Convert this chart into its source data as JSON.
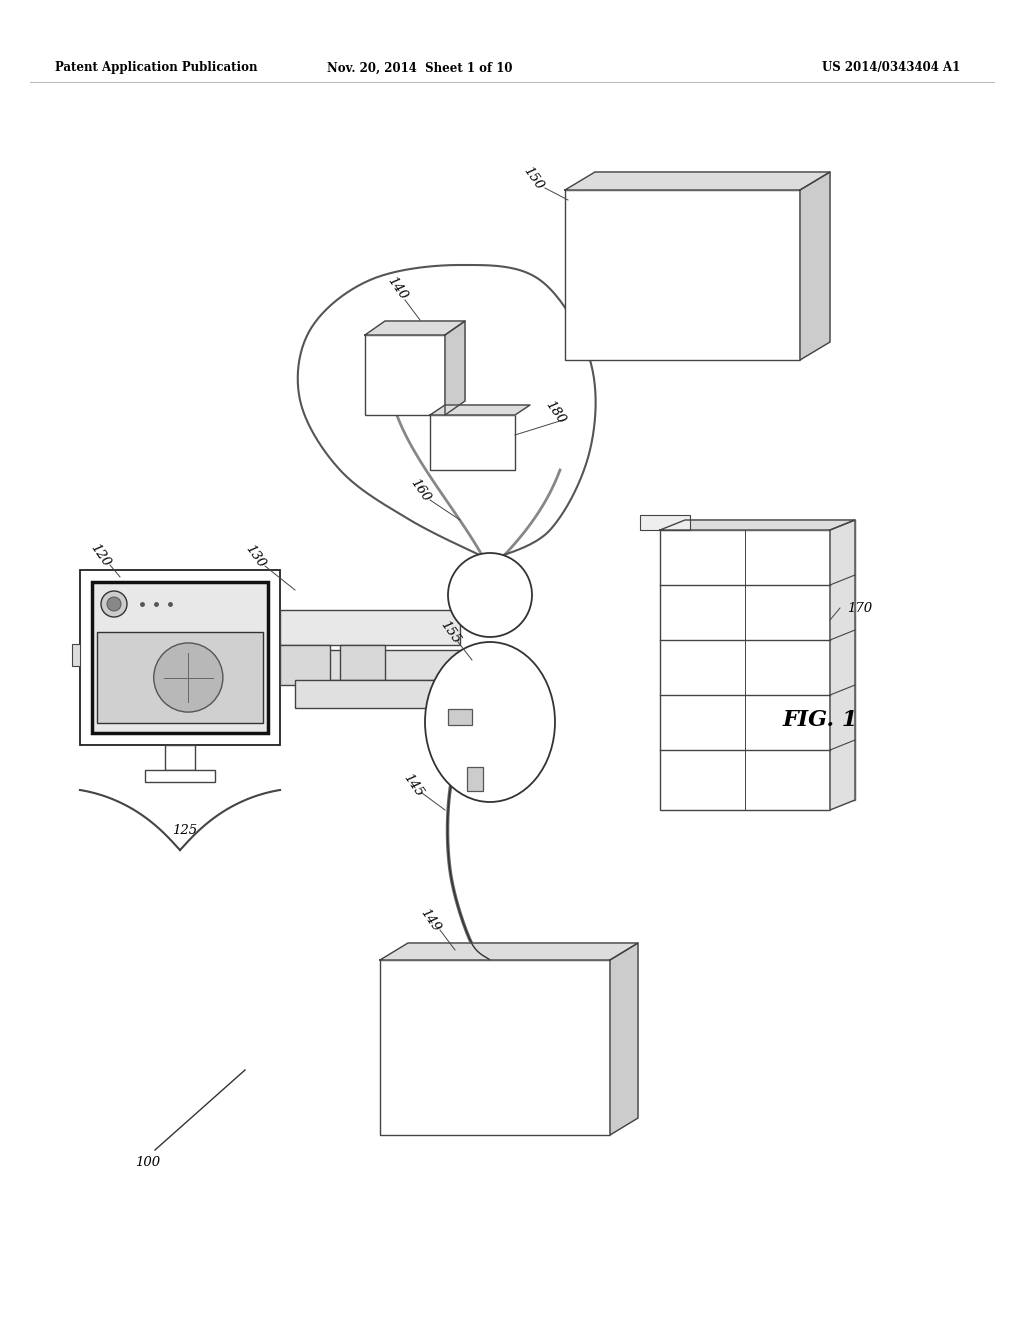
{
  "bg_color": "#ffffff",
  "lc": "#444444",
  "header_left": "Patent Application Publication",
  "header_center": "Nov. 20, 2014  Sheet 1 of 10",
  "header_right": "US 2014/0343404 A1",
  "fig_label": "FIG. 1",
  "lw": 1.0
}
